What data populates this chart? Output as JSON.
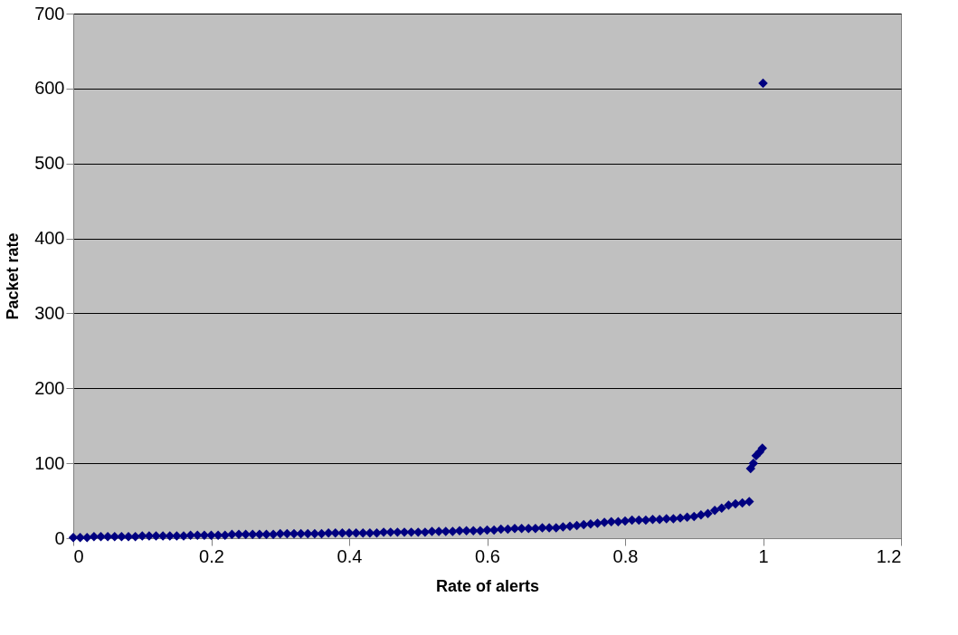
{
  "chart_data": {
    "type": "scatter",
    "xlabel": "Rate of alerts",
    "ylabel": "Packet rate",
    "x": [
      0,
      0.01,
      0.02,
      0.03,
      0.04,
      0.05,
      0.06,
      0.07,
      0.08,
      0.09,
      0.1,
      0.11,
      0.12,
      0.13,
      0.14,
      0.15,
      0.16,
      0.17,
      0.18,
      0.19,
      0.2,
      0.21,
      0.22,
      0.23,
      0.24,
      0.25,
      0.26,
      0.27,
      0.28,
      0.29,
      0.3,
      0.31,
      0.32,
      0.33,
      0.34,
      0.35,
      0.36,
      0.37,
      0.38,
      0.39,
      0.4,
      0.41,
      0.42,
      0.43,
      0.44,
      0.45,
      0.46,
      0.47,
      0.48,
      0.49,
      0.5,
      0.51,
      0.52,
      0.53,
      0.54,
      0.55,
      0.56,
      0.57,
      0.58,
      0.59,
      0.6,
      0.61,
      0.62,
      0.63,
      0.64,
      0.65,
      0.66,
      0.67,
      0.68,
      0.69,
      0.7,
      0.71,
      0.72,
      0.73,
      0.74,
      0.75,
      0.76,
      0.77,
      0.78,
      0.79,
      0.8,
      0.81,
      0.82,
      0.83,
      0.84,
      0.85,
      0.86,
      0.87,
      0.88,
      0.89,
      0.9,
      0.91,
      0.92,
      0.93,
      0.94,
      0.95,
      0.96,
      0.97,
      0.98,
      0.982,
      0.986,
      0.99,
      0.995,
      0.999,
      1.0
    ],
    "series": [
      {
        "color": "#000080",
        "values": [
          1,
          1,
          1,
          2,
          2,
          2,
          2,
          2,
          2,
          2,
          3,
          3,
          3,
          3,
          3,
          3,
          3,
          4,
          4,
          4,
          4,
          4,
          4,
          5,
          5,
          5,
          5,
          5,
          5,
          5,
          6,
          6,
          6,
          6,
          6,
          6,
          6,
          7,
          7,
          7,
          7,
          7,
          7,
          7,
          7,
          8,
          8,
          8,
          8,
          8,
          8,
          8,
          9,
          9,
          9,
          9,
          10,
          10,
          10,
          10,
          11,
          11,
          12,
          12,
          13,
          13,
          13,
          13,
          14,
          14,
          14,
          15,
          16,
          17,
          18,
          19,
          20,
          21,
          22,
          22,
          23,
          24,
          24,
          24,
          25,
          25,
          26,
          26,
          27,
          28,
          29,
          31,
          33,
          37,
          40,
          44,
          46,
          47,
          49,
          93,
          100,
          110,
          115,
          120,
          607
        ]
      }
    ],
    "xlim": [
      0,
      1.2
    ],
    "xticks": [
      0,
      0.2,
      0.4,
      0.6,
      0.8,
      1,
      1.2
    ],
    "ylim": [
      0,
      700
    ],
    "yticks": [
      0,
      100,
      200,
      300,
      400,
      500,
      600,
      700
    ],
    "grid": "y",
    "marker": "diamond"
  }
}
